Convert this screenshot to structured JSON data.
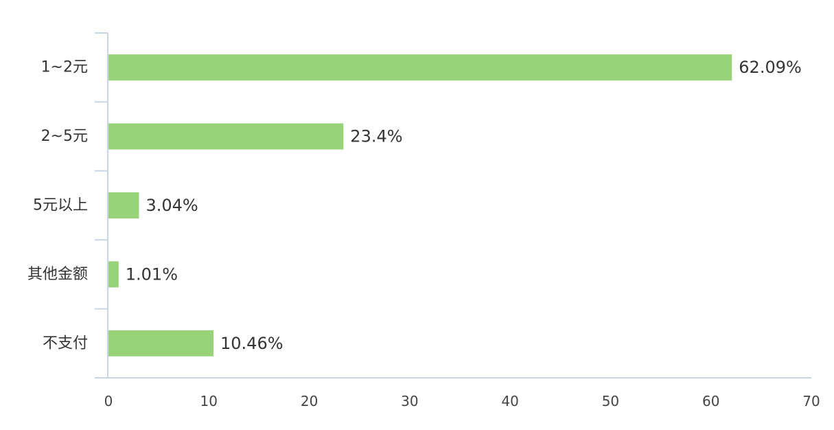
{
  "chart_data": {
    "type": "bar",
    "orientation": "horizontal",
    "categories": [
      "1~2元",
      "2~5元",
      "5元以上",
      "其他金额",
      "不支付"
    ],
    "values": [
      62.09,
      23.4,
      3.04,
      1.01,
      10.46
    ],
    "value_labels": [
      "62.09%",
      "23.4%",
      "3.04%",
      "1.01%",
      "10.46%"
    ],
    "xlim": [
      0,
      70
    ],
    "x_ticks": [
      0,
      10,
      20,
      30,
      40,
      50,
      60,
      70
    ],
    "grid": false,
    "title": "",
    "xlabel": "",
    "ylabel": ""
  },
  "colors": {
    "bar": "#98d279",
    "axis": "#c9d6e6",
    "text": "#333333"
  }
}
